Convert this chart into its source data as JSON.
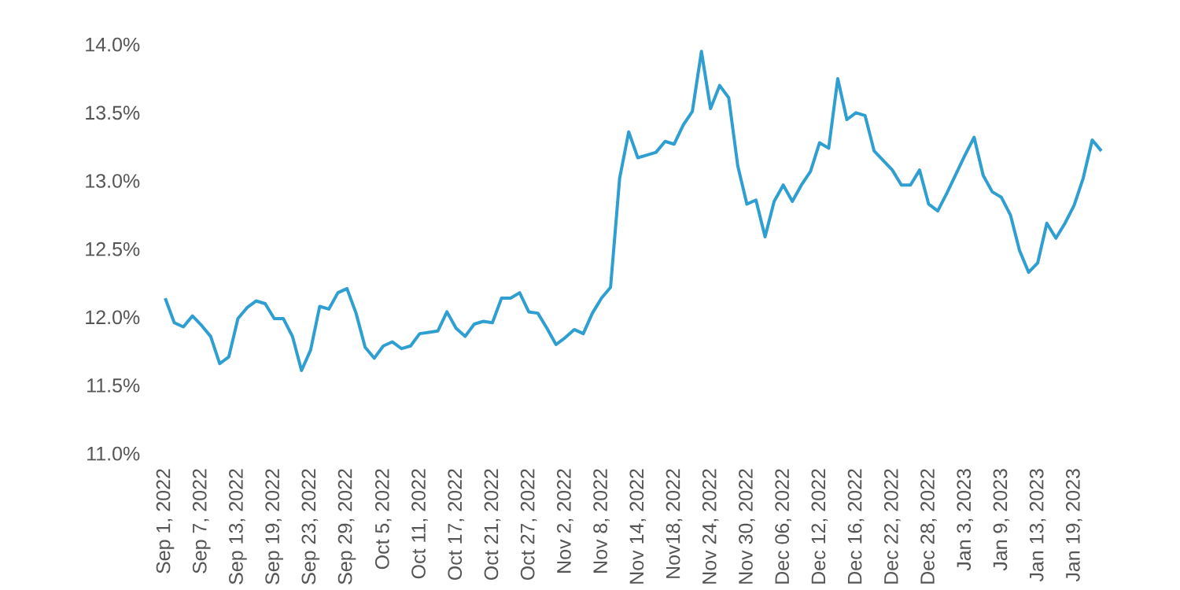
{
  "chart_data": {
    "type": "line",
    "categories": [
      "Sep 1, 2022",
      null,
      null,
      null,
      "Sep 7, 2022",
      null,
      null,
      null,
      "Sep 13, 2022",
      null,
      null,
      null,
      "Sep 19, 2022",
      null,
      null,
      null,
      "Sep 23, 2022",
      null,
      null,
      null,
      "Sep 29, 2022",
      null,
      null,
      null,
      "Oct 5, 2022",
      null,
      null,
      null,
      "Oct 11, 2022",
      null,
      null,
      null,
      "Oct 17, 2022",
      null,
      null,
      null,
      "Oct 21, 2022",
      null,
      null,
      null,
      "Oct 27, 2022",
      null,
      null,
      null,
      "Nov 2, 2022",
      null,
      null,
      null,
      "Nov 8, 2022",
      null,
      null,
      null,
      "Nov 14, 2022",
      null,
      null,
      null,
      "Nov18, 2022",
      null,
      null,
      null,
      "Nov 24, 2022",
      null,
      null,
      null,
      "Nov 30, 2022",
      null,
      null,
      null,
      "Dec 06, 2022",
      null,
      null,
      null,
      "Dec 12, 2022",
      null,
      null,
      null,
      "Dec 16, 2022",
      null,
      null,
      null,
      "Dec 22, 2022",
      null,
      null,
      null,
      "Dec 28, 2022",
      null,
      null,
      null,
      "Jan 3, 2023",
      null,
      null,
      null,
      "Jan 9, 2023",
      null,
      null,
      null,
      "Jan 13, 2023",
      null,
      null,
      null,
      "Jan 19, 2023",
      null,
      null,
      null
    ],
    "series": [
      {
        "color": "#2e9fd0",
        "values": [
          12.14,
          11.96,
          11.93,
          12.01,
          11.94,
          11.86,
          11.66,
          11.71,
          11.99,
          12.07,
          12.12,
          12.1,
          11.99,
          11.99,
          11.86,
          11.61,
          11.76,
          12.08,
          12.06,
          12.18,
          12.21,
          12.03,
          11.78,
          11.7,
          11.79,
          11.82,
          11.77,
          11.79,
          11.88,
          11.89,
          11.9,
          12.04,
          11.92,
          11.86,
          11.95,
          11.97,
          11.96,
          12.14,
          12.14,
          12.18,
          12.04,
          12.03,
          11.92,
          11.8,
          11.85,
          11.91,
          11.88,
          12.03,
          12.14,
          12.22,
          13.02,
          13.36,
          13.17,
          13.19,
          13.21,
          13.29,
          13.27,
          13.41,
          13.51,
          13.95,
          13.53,
          13.7,
          13.61,
          13.11,
          12.83,
          12.86,
          12.59,
          12.85,
          12.97,
          12.85,
          12.97,
          13.07,
          13.28,
          13.24,
          13.75,
          13.45,
          13.5,
          13.48,
          13.22,
          13.15,
          13.08,
          12.97,
          12.97,
          13.08,
          12.83,
          12.78,
          12.91,
          13.05,
          13.19,
          13.32,
          13.04,
          12.92,
          12.88,
          12.75,
          12.49,
          12.33,
          12.4,
          12.69,
          12.58,
          12.69,
          12.82,
          13.02,
          13.3,
          13.22
        ]
      }
    ],
    "ylim": [
      11.0,
      14.0
    ],
    "yticks": [
      {
        "value": 11.0,
        "label": "11.0%"
      },
      {
        "value": 11.5,
        "label": "11.5%"
      },
      {
        "value": 12.0,
        "label": "12.0%"
      },
      {
        "value": 12.5,
        "label": "12.5%"
      },
      {
        "value": 13.0,
        "label": "13.0%"
      },
      {
        "value": 13.5,
        "label": "13.5%"
      },
      {
        "value": 14.0,
        "label": "14.0%"
      }
    ]
  }
}
